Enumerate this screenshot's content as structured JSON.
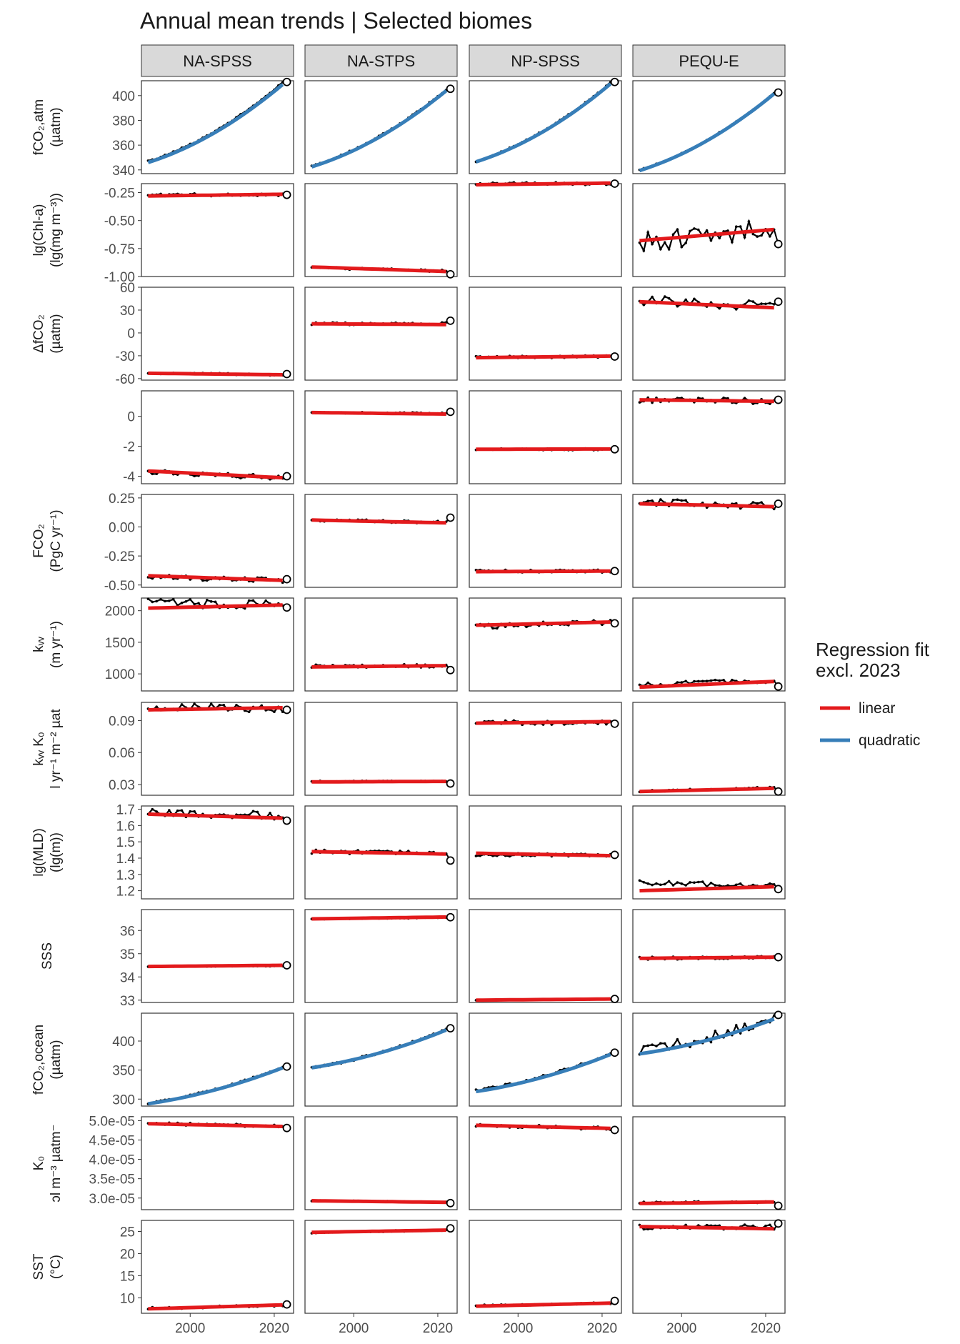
{
  "chart_data": {
    "type": "line",
    "title": "Annual mean trends | Selected biomes",
    "x_start": 1990,
    "x_end": 2023,
    "xlim": [
      1988.4,
      2024.6
    ],
    "x_ticks": [
      2000,
      2020
    ],
    "x_tick_labels": [
      "2000",
      "2020"
    ],
    "columns": [
      "NA-SPSS",
      "NA-STPS",
      "NP-SPSS",
      "PEQU-E"
    ],
    "colors": {
      "linear": "#e31a1c",
      "quadratic": "#377eb8",
      "observed": "#000000",
      "panel_border": "#333333",
      "strip_fill": "#d9d9d9"
    },
    "legend": {
      "title_line1": "Regression fit",
      "title_line2": "excl. 2023",
      "entries": [
        {
          "label": "linear",
          "color": "#e31a1c"
        },
        {
          "label": "quadratic",
          "color": "#377eb8"
        }
      ]
    },
    "rows": [
      {
        "ylabel_lines": [
          "fCO₂,atm",
          "(µatm)"
        ],
        "ylim": [
          337,
          412
        ],
        "ticks": [
          340,
          360,
          380,
          400
        ],
        "tick_labels": [
          "340",
          "360",
          "380",
          "400"
        ],
        "fit": "quadratic",
        "series": [
          {
            "start": 347,
            "end": 410.5,
            "end_2023": 411,
            "noise": 0.5,
            "fit_start": 346,
            "fit_end": 409
          },
          {
            "start": 343,
            "end": 405,
            "end_2023": 405.5,
            "noise": 0.5,
            "fit_start": 342.5,
            "fit_end": 404
          },
          {
            "start": 347,
            "end": 410.5,
            "end_2023": 411,
            "noise": 0.5,
            "fit_start": 346.5,
            "fit_end": 409.5
          },
          {
            "start": 340,
            "end": 402,
            "end_2023": 402.5,
            "noise": 0.5,
            "fit_start": 339.5,
            "fit_end": 401.5
          }
        ]
      },
      {
        "ylabel_lines": [
          "lg(Chl-a)",
          "(lg(mg m⁻³))"
        ],
        "ylim": [
          -1.0,
          -0.17
        ],
        "ticks": [
          -1.0,
          -0.75,
          -0.5,
          -0.25
        ],
        "tick_labels": [
          "-1.00",
          "-0.75",
          "-0.50",
          "-0.25"
        ],
        "fit": "linear",
        "series": [
          {
            "start": -0.27,
            "end": -0.27,
            "end_2023": -0.27,
            "noise": 0.012,
            "fit_start": -0.28,
            "fit_end": -0.265
          },
          {
            "start": -0.92,
            "end": -0.95,
            "end_2023": -0.98,
            "noise": 0.01,
            "fit_start": -0.915,
            "fit_end": -0.955
          },
          {
            "start": -0.17,
            "end": -0.17,
            "end_2023": -0.17,
            "noise": 0.012,
            "fit_start": -0.18,
            "fit_end": -0.165
          },
          {
            "start": -0.7,
            "end": -0.56,
            "end_2023": -0.71,
            "noise": 0.09,
            "fit_start": -0.68,
            "fit_end": -0.58
          }
        ]
      },
      {
        "ylabel_lines": [
          "ΔfCO₂",
          "(µatm)"
        ],
        "ylim": [
          -62,
          60
        ],
        "ticks": [
          -60,
          -30,
          0,
          30,
          60
        ],
        "tick_labels": [
          "-60",
          "-30",
          "0",
          "30",
          "60"
        ],
        "fit": "linear",
        "series": [
          {
            "start": -53,
            "end": -55,
            "end_2023": -54,
            "noise": 1.2,
            "fit_start": -53,
            "fit_end": -55
          },
          {
            "start": 12,
            "end": 12,
            "end_2023": 16,
            "noise": 2,
            "fit_start": 12,
            "fit_end": 11
          },
          {
            "start": -32,
            "end": -31,
            "end_2023": -31,
            "noise": 1.5,
            "fit_start": -32.5,
            "fit_end": -30.5
          },
          {
            "start": 43,
            "end": 35,
            "end_2023": 41,
            "noise": 7,
            "fit_start": 41,
            "fit_end": 33
          }
        ]
      },
      {
        "ylabel_lines": [],
        "ylim": [
          -4.5,
          1.7
        ],
        "ticks": [
          -4,
          -2,
          0
        ],
        "tick_labels": [
          "-4",
          "-2",
          "0"
        ],
        "fit": "linear",
        "series": [
          {
            "start": -3.7,
            "end": -4.1,
            "end_2023": -4.0,
            "noise": 0.15,
            "fit_start": -3.65,
            "fit_end": -4.1
          },
          {
            "start": 0.25,
            "end": 0.2,
            "end_2023": 0.3,
            "noise": 0.05,
            "fit_start": 0.25,
            "fit_end": 0.15
          },
          {
            "start": -2.2,
            "end": -2.2,
            "end_2023": -2.2,
            "noise": 0.06,
            "fit_start": -2.2,
            "fit_end": -2.18
          },
          {
            "start": 1.1,
            "end": 1.0,
            "end_2023": 1.1,
            "noise": 0.2,
            "fit_start": 1.1,
            "fit_end": 1.0
          }
        ]
      },
      {
        "ylabel_lines": [
          "FCO₂",
          "(PgC yr⁻¹)"
        ],
        "ylim": [
          -0.52,
          0.28
        ],
        "ticks": [
          -0.5,
          -0.25,
          0.0,
          0.25
        ],
        "tick_labels": [
          "-0.50",
          "-0.25",
          "0.00",
          "0.25"
        ],
        "fit": "linear",
        "series": [
          {
            "start": -0.43,
            "end": -0.46,
            "end_2023": -0.45,
            "noise": 0.02,
            "fit_start": -0.42,
            "fit_end": -0.46
          },
          {
            "start": 0.06,
            "end": 0.04,
            "end_2023": 0.08,
            "noise": 0.012,
            "fit_start": 0.06,
            "fit_end": 0.035
          },
          {
            "start": -0.38,
            "end": -0.38,
            "end_2023": -0.38,
            "noise": 0.012,
            "fit_start": -0.385,
            "fit_end": -0.38
          },
          {
            "start": 0.21,
            "end": 0.18,
            "end_2023": 0.2,
            "noise": 0.035,
            "fit_start": 0.2,
            "fit_end": 0.175
          }
        ]
      },
      {
        "ylabel_lines": [
          "kᵥᵥ",
          "(m yr⁻¹)"
        ],
        "ylim": [
          730,
          2200
        ],
        "ticks": [
          1000,
          1500,
          2000
        ],
        "tick_labels": [
          "1000",
          "1500",
          "2000"
        ],
        "fit": "linear",
        "series": [
          {
            "start": 2120,
            "end": 2100,
            "end_2023": 2050,
            "noise": 70,
            "fit_start": 2040,
            "fit_end": 2090
          },
          {
            "start": 1120,
            "end": 1130,
            "end_2023": 1060,
            "noise": 25,
            "fit_start": 1110,
            "fit_end": 1130
          },
          {
            "start": 1750,
            "end": 1820,
            "end_2023": 1800,
            "noise": 40,
            "fit_start": 1770,
            "fit_end": 1820
          },
          {
            "start": 820,
            "end": 900,
            "end_2023": 800,
            "noise": 40,
            "fit_start": 790,
            "fit_end": 880
          }
        ]
      },
      {
        "ylabel_lines": [
          "kᵥᵥ K₀",
          "l yr⁻¹ m⁻² µat"
        ],
        "ylim": [
          0.02,
          0.107
        ],
        "ticks": [
          0.03,
          0.06,
          0.09
        ],
        "tick_labels": [
          "0.03",
          "0.06",
          "0.09"
        ],
        "fit": "linear",
        "series": [
          {
            "start": 0.103,
            "end": 0.101,
            "end_2023": 0.1,
            "noise": 0.0035,
            "fit_start": 0.1,
            "fit_end": 0.102
          },
          {
            "start": 0.033,
            "end": 0.033,
            "end_2023": 0.031,
            "noise": 0.0006,
            "fit_start": 0.0325,
            "fit_end": 0.033
          },
          {
            "start": 0.088,
            "end": 0.088,
            "end_2023": 0.087,
            "noise": 0.002,
            "fit_start": 0.0875,
            "fit_end": 0.089
          },
          {
            "start": 0.024,
            "end": 0.027,
            "end_2023": 0.0235,
            "noise": 0.001,
            "fit_start": 0.0235,
            "fit_end": 0.0265
          }
        ]
      },
      {
        "ylabel_lines": [
          "lg(MLD)",
          "(lg(m))"
        ],
        "ylim": [
          1.15,
          1.72
        ],
        "ticks": [
          1.2,
          1.3,
          1.4,
          1.5,
          1.6,
          1.7
        ],
        "tick_labels": [
          "1.2",
          "1.3",
          "1.4",
          "1.5",
          "1.6",
          "1.7"
        ],
        "fit": "linear",
        "series": [
          {
            "start": 1.68,
            "end": 1.66,
            "end_2023": 1.63,
            "noise": 0.025,
            "fit_start": 1.67,
            "fit_end": 1.645
          },
          {
            "start": 1.44,
            "end": 1.43,
            "end_2023": 1.385,
            "noise": 0.012,
            "fit_start": 1.44,
            "fit_end": 1.425
          },
          {
            "start": 1.42,
            "end": 1.42,
            "end_2023": 1.42,
            "noise": 0.01,
            "fit_start": 1.43,
            "fit_end": 1.415
          },
          {
            "start": 1.25,
            "end": 1.23,
            "end_2023": 1.21,
            "noise": 0.015,
            "fit_start": 1.2,
            "fit_end": 1.225
          }
        ]
      },
      {
        "ylabel_lines": [
          "SSS"
        ],
        "ylim": [
          32.9,
          36.9
        ],
        "ticks": [
          33,
          34,
          35,
          36
        ],
        "tick_labels": [
          "33",
          "34",
          "35",
          "36"
        ],
        "fit": "linear",
        "series": [
          {
            "start": 34.45,
            "end": 34.48,
            "end_2023": 34.5,
            "noise": 0.02,
            "fit_start": 34.45,
            "fit_end": 34.5
          },
          {
            "start": 36.5,
            "end": 36.55,
            "end_2023": 36.57,
            "noise": 0.02,
            "fit_start": 36.5,
            "fit_end": 36.58
          },
          {
            "start": 33.0,
            "end": 33.04,
            "end_2023": 33.05,
            "noise": 0.01,
            "fit_start": 33.0,
            "fit_end": 33.05
          },
          {
            "start": 34.8,
            "end": 34.85,
            "end_2023": 34.85,
            "noise": 0.06,
            "fit_start": 34.8,
            "fit_end": 34.85
          }
        ]
      },
      {
        "ylabel_lines": [
          "fCO₂,ocean",
          "(µatm)"
        ],
        "ylim": [
          288,
          448
        ],
        "ticks": [
          300,
          350,
          400
        ],
        "tick_labels": [
          "300",
          "350",
          "400"
        ],
        "fit": "quadratic",
        "series": [
          {
            "start": 293,
            "end": 355,
            "end_2023": 356,
            "noise": 1.5,
            "fit_start": 292,
            "fit_end": 354
          },
          {
            "start": 354,
            "end": 420,
            "end_2023": 422,
            "noise": 2,
            "fit_start": 354,
            "fit_end": 419
          },
          {
            "start": 315,
            "end": 378,
            "end_2023": 380,
            "noise": 2,
            "fit_start": 313,
            "fit_end": 377
          },
          {
            "start": 383,
            "end": 440,
            "end_2023": 445,
            "noise": 9,
            "fit_start": 378,
            "fit_end": 438
          }
        ]
      },
      {
        "ylabel_lines": [
          "K₀",
          "ɔl m⁻³ µatm⁻"
        ],
        "ylim": [
          2.7e-05,
          5.1e-05
        ],
        "ticks": [
          3e-05,
          3.5e-05,
          4e-05,
          4.5e-05,
          5e-05
        ],
        "tick_labels": [
          "3.0e-05",
          "3.5e-05",
          "4.0e-05",
          "4.5e-05",
          "5.0e-05"
        ],
        "fit": "linear",
        "series": [
          {
            "start": 4.93e-05,
            "end": 4.86e-05,
            "end_2023": 4.81e-05,
            "noise": 3.5e-07,
            "fit_start": 4.92e-05,
            "fit_end": 4.85e-05
          },
          {
            "start": 2.93e-05,
            "end": 2.9e-05,
            "end_2023": 2.87e-05,
            "noise": 1e-07,
            "fit_start": 2.93e-05,
            "fit_end": 2.89e-05
          },
          {
            "start": 4.88e-05,
            "end": 4.8e-05,
            "end_2023": 4.76e-05,
            "noise": 4e-07,
            "fit_start": 4.88e-05,
            "fit_end": 4.8e-05
          },
          {
            "start": 2.88e-05,
            "end": 2.9e-05,
            "end_2023": 2.8e-05,
            "noise": 2.5e-07,
            "fit_start": 2.86e-05,
            "fit_end": 2.9e-05
          }
        ]
      },
      {
        "ylabel_lines": [
          "SST",
          "(°C)"
        ],
        "ylim": [
          6.5,
          27.5
        ],
        "ticks": [
          10,
          15,
          20,
          25
        ],
        "tick_labels": [
          "10",
          "15",
          "20",
          "25"
        ],
        "fit": "linear",
        "series": [
          {
            "start": 7.6,
            "end": 8.3,
            "end_2023": 8.5,
            "noise": 0.25,
            "fit_start": 7.5,
            "fit_end": 8.4
          },
          {
            "start": 24.7,
            "end": 25.3,
            "end_2023": 25.7,
            "noise": 0.15,
            "fit_start": 24.8,
            "fit_end": 25.3
          },
          {
            "start": 8.2,
            "end": 8.8,
            "end_2023": 9.3,
            "noise": 0.2,
            "fit_start": 8.1,
            "fit_end": 8.8
          },
          {
            "start": 26,
            "end": 26,
            "end_2023": 26.8,
            "noise": 0.55,
            "fit_start": 26.1,
            "fit_end": 25.6
          }
        ]
      }
    ]
  }
}
